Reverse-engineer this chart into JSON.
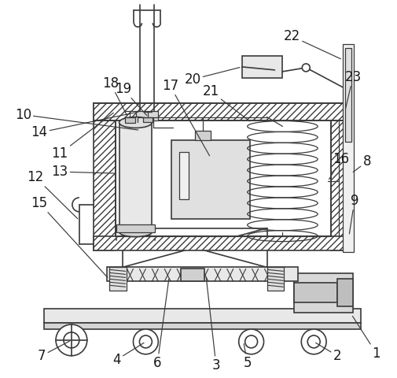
{
  "bg_color": "#ffffff",
  "line_color": "#3a3a3a",
  "label_color": "#1a1a1a",
  "fig_width": 5.06,
  "fig_height": 4.8,
  "label_fontsize": 12
}
